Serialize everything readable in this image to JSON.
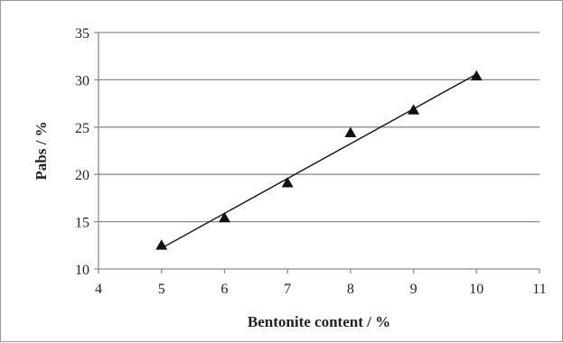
{
  "chart_data": {
    "type": "scatter",
    "title": "",
    "xlabel": "Bentonite content / %",
    "ylabel": "Pabs / %",
    "xlim": [
      4,
      11
    ],
    "ylim": [
      10,
      35
    ],
    "xticks": [
      4,
      5,
      6,
      7,
      8,
      9,
      10,
      11
    ],
    "yticks": [
      10,
      15,
      20,
      25,
      30,
      35
    ],
    "grid": "horizontal",
    "legend": "none",
    "series": [
      {
        "marker": "triangle",
        "color": "#111111",
        "points": [
          {
            "x": 5,
            "y": 12.5
          },
          {
            "x": 6,
            "y": 15.4
          },
          {
            "x": 7,
            "y": 19.1
          },
          {
            "x": 8,
            "y": 24.4
          },
          {
            "x": 9,
            "y": 26.8
          },
          {
            "x": 10,
            "y": 30.4
          }
        ]
      }
    ],
    "trendline": {
      "type": "linear",
      "from": {
        "x": 5,
        "y": 12.2
      },
      "to": {
        "x": 10,
        "y": 30.6
      },
      "color": "#111111"
    }
  }
}
